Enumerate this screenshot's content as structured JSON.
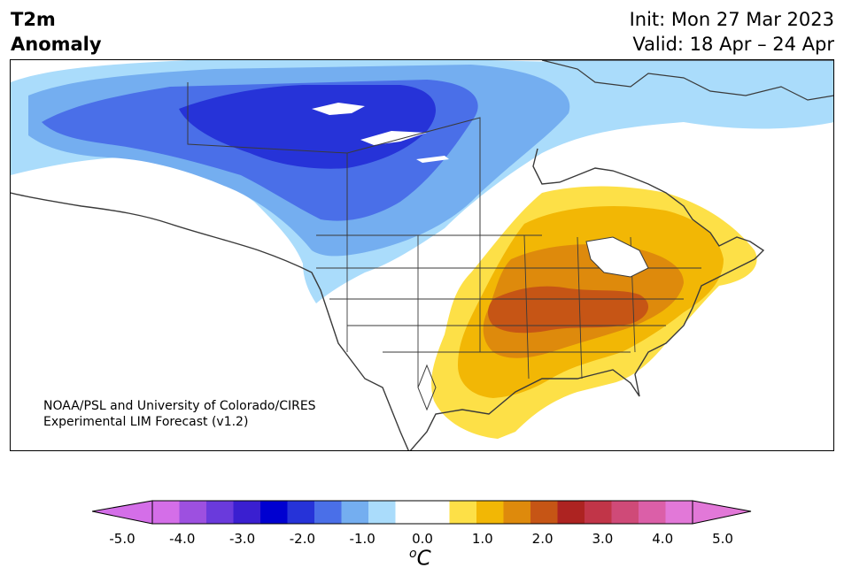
{
  "title": {
    "variable": "T2m",
    "subtitle": "Anomaly",
    "init": "Init: Mon 27 Mar 2023",
    "valid": "Valid: 18 Apr – 24 Apr"
  },
  "credit": {
    "line1": "NOAA/PSL and University of Colorado/CIRES",
    "line2": "Experimental LIM Forecast (v1.2)"
  },
  "colorbar": {
    "unit_prefix": "o",
    "unit": "C",
    "tick_labels": [
      "-5.0",
      "-4.0",
      "-3.0",
      "-2.0",
      "-1.0",
      "0.0",
      "1.0",
      "2.0",
      "3.0",
      "4.0",
      "5.0"
    ],
    "colors": [
      "#d46ee8",
      "#9d50e0",
      "#6a3adc",
      "#3a1fd0",
      "#0000d0",
      "#2633d8",
      "#4a6fe8",
      "#74aef0",
      "#aadcfb",
      "#ffffff",
      "#ffffff",
      "#fde047",
      "#f2b705",
      "#de8a0c",
      "#c65515",
      "#ad2321",
      "#c13548",
      "#cf4a78",
      "#db5fa8",
      "#e278d8"
    ],
    "under_color": "#d46ee8",
    "over_color": "#e278d8"
  },
  "map": {
    "region": "North America",
    "cold_anomaly_region": "western and central Canada",
    "warm_anomaly_region": "eastern and central United States"
  }
}
